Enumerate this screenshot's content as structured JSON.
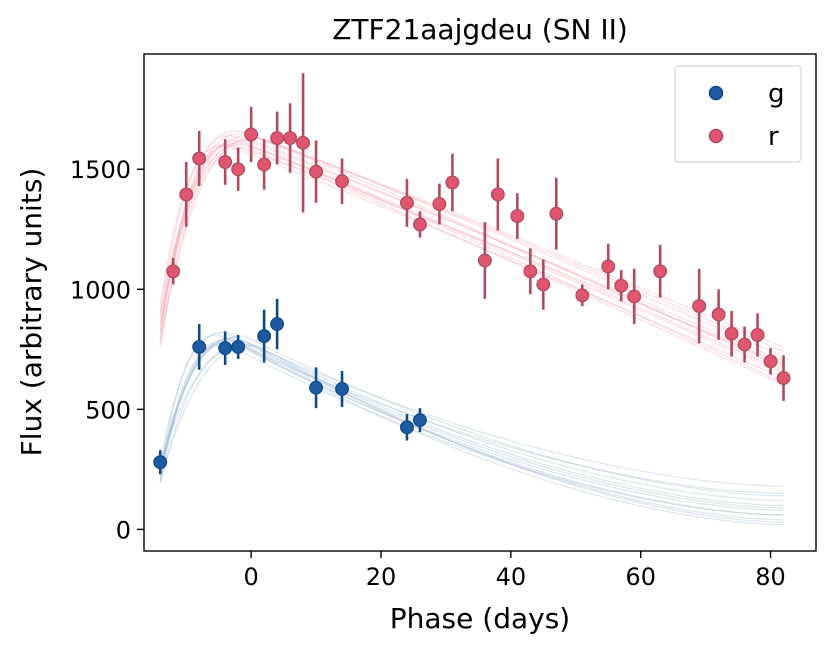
{
  "chart_data": {
    "type": "scatter",
    "title": "ZTF21aajgdeu (SN II)",
    "xlabel": "Phase (days)",
    "ylabel": "Flux (arbitrary units)",
    "xlim": [
      -16.5,
      87
    ],
    "ylim": [
      -90,
      1980
    ],
    "xticks": [
      0,
      20,
      40,
      60,
      80
    ],
    "yticks": [
      0,
      500,
      1000,
      1500
    ],
    "grid": false,
    "legend": {
      "position": "top-right",
      "entries": [
        {
          "label": "g",
          "color": "#1f5aa0"
        },
        {
          "label": "r",
          "color": "#e0566e"
        }
      ]
    },
    "series": [
      {
        "name": "g",
        "color": "#1f5aa0",
        "error_color": "#0d4a8a",
        "model_color": "#9fb7d4",
        "points": [
          {
            "x": -14,
            "y": 280,
            "err": 50
          },
          {
            "x": -8,
            "y": 760,
            "err": 95
          },
          {
            "x": -4,
            "y": 755,
            "err": 70
          },
          {
            "x": -2,
            "y": 760,
            "err": 50
          },
          {
            "x": 2,
            "y": 805,
            "err": 110
          },
          {
            "x": 4,
            "y": 855,
            "err": 105
          },
          {
            "x": 10,
            "y": 590,
            "err": 85
          },
          {
            "x": 14,
            "y": 585,
            "err": 75
          },
          {
            "x": 24,
            "y": 425,
            "err": 55
          },
          {
            "x": 26,
            "y": 455,
            "err": 50
          }
        ],
        "model_curves": [
          {
            "y_start": 200,
            "x_peak": -3,
            "y_peak": 790,
            "y_end": 60
          },
          {
            "y_start": 280,
            "x_peak": -4,
            "y_peak": 820,
            "y_end": 180
          },
          {
            "y_start": 190,
            "x_peak": -1,
            "y_peak": 760,
            "y_end": 20
          },
          {
            "y_start": 240,
            "x_peak": -2,
            "y_peak": 800,
            "y_end": 120
          },
          {
            "y_start": 210,
            "x_peak": -3,
            "y_peak": 780,
            "y_end": 80
          },
          {
            "y_start": 260,
            "x_peak": 0,
            "y_peak": 770,
            "y_end": 40
          },
          {
            "y_start": 230,
            "x_peak": -5,
            "y_peak": 810,
            "y_end": 150
          },
          {
            "y_start": 250,
            "x_peak": -2,
            "y_peak": 790,
            "y_end": 100
          },
          {
            "y_start": 220,
            "x_peak": -4,
            "y_peak": 775,
            "y_end": 60
          },
          {
            "y_start": 270,
            "x_peak": -1,
            "y_peak": 805,
            "y_end": 140
          },
          {
            "y_start": 200,
            "x_peak": 1,
            "y_peak": 765,
            "y_end": 30
          },
          {
            "y_start": 240,
            "x_peak": -3,
            "y_peak": 795,
            "y_end": 90
          }
        ]
      },
      {
        "name": "r",
        "color": "#e0566e",
        "error_color": "#b04a5c",
        "model_color": "#f2a3b0",
        "points": [
          {
            "x": -12,
            "y": 1075,
            "err": 55
          },
          {
            "x": -10,
            "y": 1395,
            "err": 135
          },
          {
            "x": -8,
            "y": 1545,
            "err": 115
          },
          {
            "x": -4,
            "y": 1530,
            "err": 95
          },
          {
            "x": -2,
            "y": 1500,
            "err": 90
          },
          {
            "x": 0,
            "y": 1645,
            "err": 115
          },
          {
            "x": 2,
            "y": 1520,
            "err": 105
          },
          {
            "x": 4,
            "y": 1630,
            "err": 110
          },
          {
            "x": 6,
            "y": 1630,
            "err": 145
          },
          {
            "x": 8,
            "y": 1610,
            "err": 290
          },
          {
            "x": 10,
            "y": 1490,
            "err": 130
          },
          {
            "x": 14,
            "y": 1450,
            "err": 95
          },
          {
            "x": 24,
            "y": 1360,
            "err": 100
          },
          {
            "x": 26,
            "y": 1270,
            "err": 55
          },
          {
            "x": 29,
            "y": 1355,
            "err": 85
          },
          {
            "x": 31,
            "y": 1445,
            "err": 120
          },
          {
            "x": 36,
            "y": 1120,
            "err": 160
          },
          {
            "x": 38,
            "y": 1395,
            "err": 150
          },
          {
            "x": 41,
            "y": 1305,
            "err": 95
          },
          {
            "x": 43,
            "y": 1075,
            "err": 95
          },
          {
            "x": 45,
            "y": 1020,
            "err": 105
          },
          {
            "x": 47,
            "y": 1315,
            "err": 150
          },
          {
            "x": 51,
            "y": 975,
            "err": 45
          },
          {
            "x": 55,
            "y": 1095,
            "err": 95
          },
          {
            "x": 57,
            "y": 1015,
            "err": 65
          },
          {
            "x": 59,
            "y": 970,
            "err": 115
          },
          {
            "x": 63,
            "y": 1075,
            "err": 110
          },
          {
            "x": 69,
            "y": 930,
            "err": 155
          },
          {
            "x": 72,
            "y": 895,
            "err": 105
          },
          {
            "x": 74,
            "y": 815,
            "err": 95
          },
          {
            "x": 76,
            "y": 770,
            "err": 75
          },
          {
            "x": 78,
            "y": 810,
            "err": 90
          },
          {
            "x": 80,
            "y": 700,
            "err": 55
          },
          {
            "x": 82,
            "y": 630,
            "err": 95
          }
        ],
        "model_curves": [
          {
            "y_start": 830,
            "x_peak": -2,
            "y_peak": 1610,
            "y_end": 650
          },
          {
            "y_start": 900,
            "x_peak": -3,
            "y_peak": 1640,
            "y_end": 700
          },
          {
            "y_start": 760,
            "x_peak": -1,
            "y_peak": 1590,
            "y_end": 600
          },
          {
            "y_start": 860,
            "x_peak": 0,
            "y_peak": 1620,
            "y_end": 680
          },
          {
            "y_start": 800,
            "x_peak": -2,
            "y_peak": 1660,
            "y_end": 760
          },
          {
            "y_start": 940,
            "x_peak": -4,
            "y_peak": 1600,
            "y_end": 630
          },
          {
            "y_start": 780,
            "x_peak": 1,
            "y_peak": 1630,
            "y_end": 720
          },
          {
            "y_start": 880,
            "x_peak": -1,
            "y_peak": 1650,
            "y_end": 670
          },
          {
            "y_start": 820,
            "x_peak": -3,
            "y_peak": 1600,
            "y_end": 690
          },
          {
            "y_start": 900,
            "x_peak": 0,
            "y_peak": 1640,
            "y_end": 740
          },
          {
            "y_start": 770,
            "x_peak": -2,
            "y_peak": 1620,
            "y_end": 610
          },
          {
            "y_start": 850,
            "x_peak": -1,
            "y_peak": 1605,
            "y_end": 660
          }
        ]
      }
    ]
  }
}
